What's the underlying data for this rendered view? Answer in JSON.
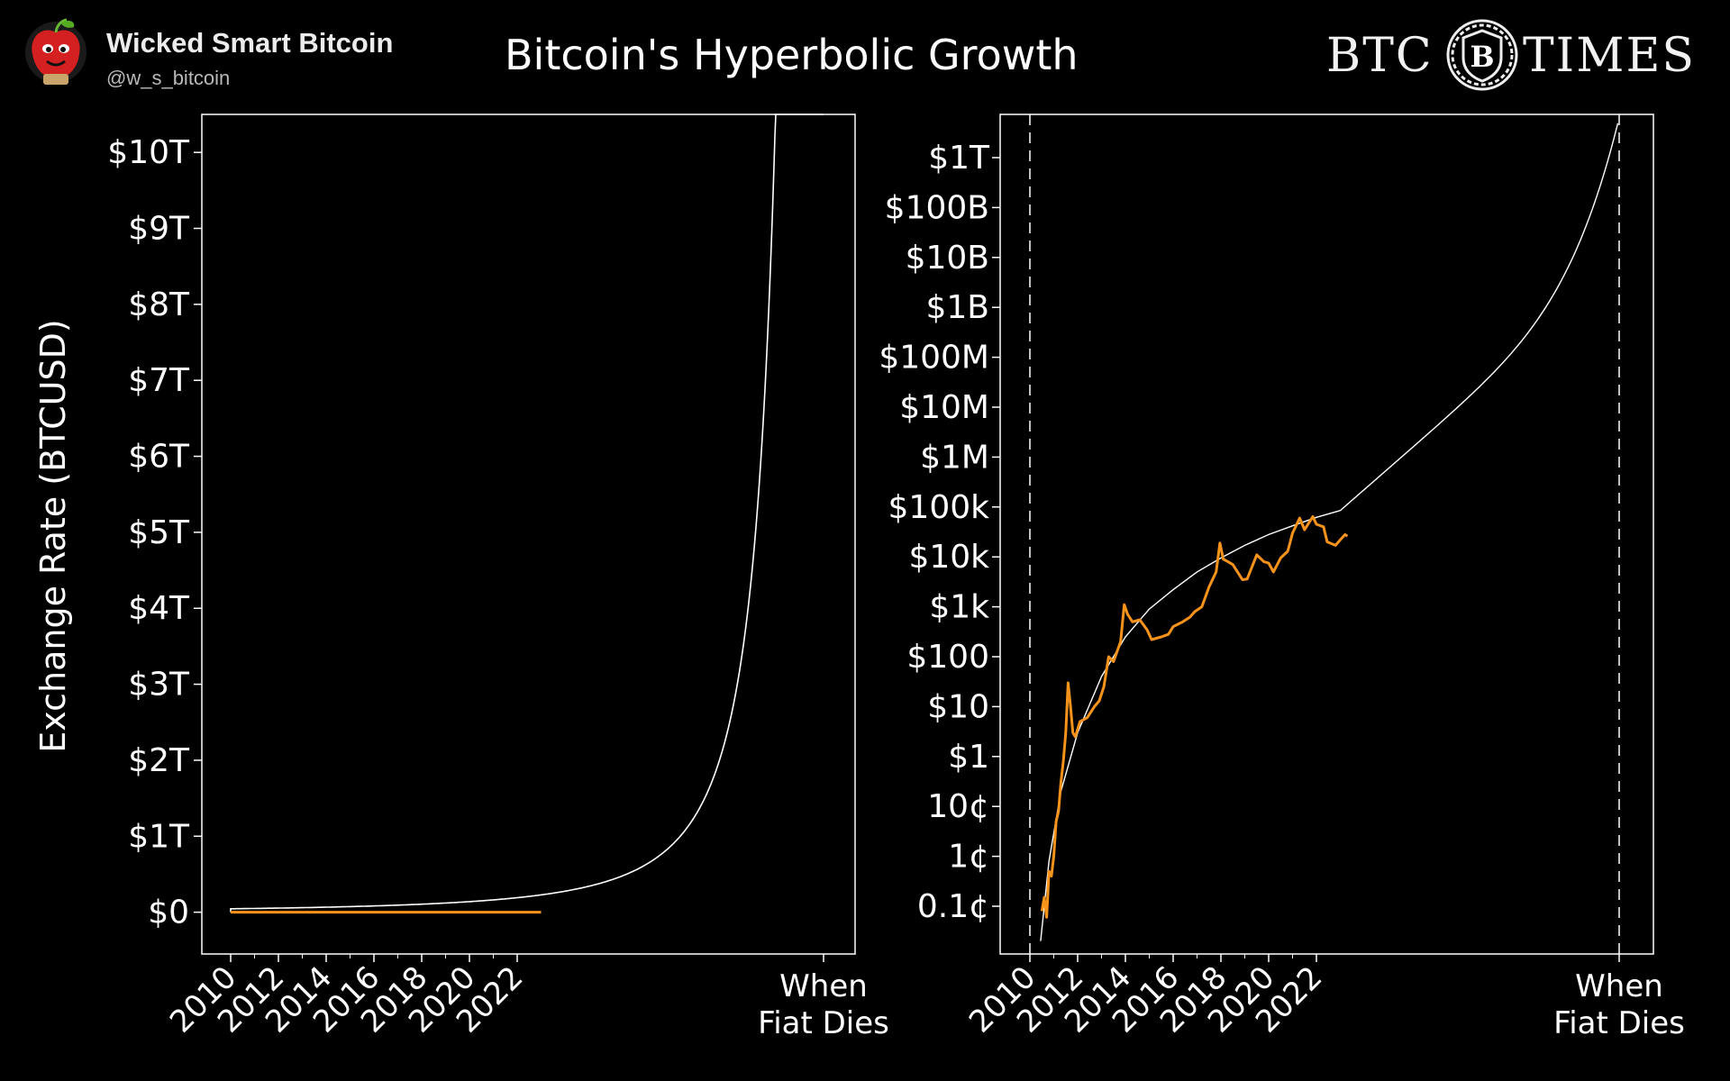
{
  "header": {
    "account_name": "Wicked Smart Bitcoin",
    "account_handle": "@w_s_bitcoin",
    "title": "Bitcoin's Hyperbolic Growth",
    "brand_left": "BTC",
    "brand_right": "TIMES",
    "brand_seal_letter": "B",
    "avatar_icon": "apple-avatar-icon"
  },
  "colors": {
    "background": "#000000",
    "price_series": "#f7931a",
    "model_curve": "#ffffff",
    "axis": "#ffffff"
  },
  "chart_data": [
    {
      "type": "line",
      "scale": "linear",
      "ylabel": "Exchange Rate (BTCUSD)",
      "xlabel": "",
      "x_ticks": [
        "2010",
        "2012",
        "2014",
        "2016",
        "2018",
        "2020",
        "2022",
        "When Fiat Dies"
      ],
      "y_ticks": [
        "$0",
        "$1T",
        "$2T",
        "$3T",
        "$4T",
        "$5T",
        "$6T",
        "$7T",
        "$8T",
        "$9T",
        "$10T"
      ],
      "y_tick_values": [
        0,
        1000000000000.0,
        2000000000000.0,
        3000000000000.0,
        4000000000000.0,
        5000000000000.0,
        6000000000000.0,
        7000000000000.0,
        8000000000000.0,
        9000000000000.0,
        10000000000000.0
      ],
      "ylim": [
        -550000000000,
        10500000000000
      ],
      "series": [
        {
          "points": [
            [
              "2010",
              0
            ],
            [
              "2023",
              0
            ]
          ]
        },
        {
          "points": [
            [
              "2010",
              0
            ],
            [
              "2023",
              0
            ],
            [
              "When Fiat Dies",
              10500000000000
            ]
          ]
        }
      ]
    },
    {
      "type": "line",
      "scale": "log",
      "x_ticks": [
        "2010",
        "2012",
        "2014",
        "2016",
        "2018",
        "2020",
        "2022",
        "When Fiat Dies"
      ],
      "y_ticks": [
        "0.1¢",
        "1¢",
        "10¢",
        "$1",
        "$10",
        "$100",
        "$1k",
        "$10k",
        "$100k",
        "$1M",
        "$10M",
        "$100M",
        "$1B",
        "$10B",
        "$100B",
        "$1T"
      ],
      "y_tick_values": [
        0.001,
        0.01,
        0.1,
        1,
        10,
        100,
        1000,
        10000,
        100000,
        1000000,
        10000000,
        100000000,
        1000000000,
        10000000000,
        100000000000,
        1000000000000
      ],
      "series": [
        {
          "points": [
            [
              2010.5,
              0.0008
            ],
            [
              2010.6,
              0.0015
            ],
            [
              2010.7,
              0.0006
            ],
            [
              2010.8,
              0.005
            ],
            [
              2010.9,
              0.004
            ],
            [
              2011.0,
              0.01
            ],
            [
              2011.1,
              0.05
            ],
            [
              2011.2,
              0.08
            ],
            [
              2011.3,
              0.3
            ],
            [
              2011.4,
              0.8
            ],
            [
              2011.5,
              3
            ],
            [
              2011.6,
              30
            ],
            [
              2011.7,
              10
            ],
            [
              2011.8,
              3
            ],
            [
              2011.9,
              2.5
            ],
            [
              2012.1,
              5
            ],
            [
              2012.4,
              6
            ],
            [
              2012.7,
              10
            ],
            [
              2012.9,
              13
            ],
            [
              2013.1,
              25
            ],
            [
              2013.3,
              100
            ],
            [
              2013.5,
              80
            ],
            [
              2013.8,
              200
            ],
            [
              2013.95,
              1100
            ],
            [
              2014.1,
              700
            ],
            [
              2014.3,
              500
            ],
            [
              2014.6,
              550
            ],
            [
              2014.9,
              350
            ],
            [
              2015.1,
              220
            ],
            [
              2015.5,
              250
            ],
            [
              2015.8,
              280
            ],
            [
              2016.0,
              400
            ],
            [
              2016.4,
              500
            ],
            [
              2016.7,
              620
            ],
            [
              2016.9,
              800
            ],
            [
              2017.2,
              1000
            ],
            [
              2017.5,
              2500
            ],
            [
              2017.8,
              5000
            ],
            [
              2017.96,
              19000
            ],
            [
              2018.1,
              9000
            ],
            [
              2018.3,
              8000
            ],
            [
              2018.5,
              7000
            ],
            [
              2018.9,
              3500
            ],
            [
              2019.1,
              3600
            ],
            [
              2019.5,
              11000
            ],
            [
              2019.8,
              8000
            ],
            [
              2020.0,
              7500
            ],
            [
              2020.2,
              5000
            ],
            [
              2020.5,
              9500
            ],
            [
              2020.8,
              13000
            ],
            [
              2021.0,
              30000
            ],
            [
              2021.3,
              60000
            ],
            [
              2021.5,
              35000
            ],
            [
              2021.85,
              64000
            ],
            [
              2022.0,
              45000
            ],
            [
              2022.3,
              40000
            ],
            [
              2022.45,
              20000
            ],
            [
              2022.8,
              17000
            ],
            [
              2023.0,
              22000
            ],
            [
              2023.2,
              28000
            ],
            [
              2023.3,
              26000
            ]
          ]
        },
        {
          "points": [
            [
              2010.45,
              0.0002
            ],
            [
              2010.8,
              0.008
            ],
            [
              2011.3,
              0.2
            ],
            [
              2012.0,
              3
            ],
            [
              2013.0,
              40
            ],
            [
              2014.0,
              250
            ],
            [
              2015.0,
              900
            ],
            [
              2016.0,
              2200
            ],
            [
              2017.0,
              5000
            ],
            [
              2018.0,
              9500
            ],
            [
              2019.0,
              17000
            ],
            [
              2020.0,
              28000
            ],
            [
              2021.0,
              42000
            ],
            [
              2022.0,
              62000
            ],
            [
              2023.0,
              85000
            ],
            [
              "When Fiat Dies",
              1000000000000
            ]
          ]
        }
      ]
    }
  ]
}
